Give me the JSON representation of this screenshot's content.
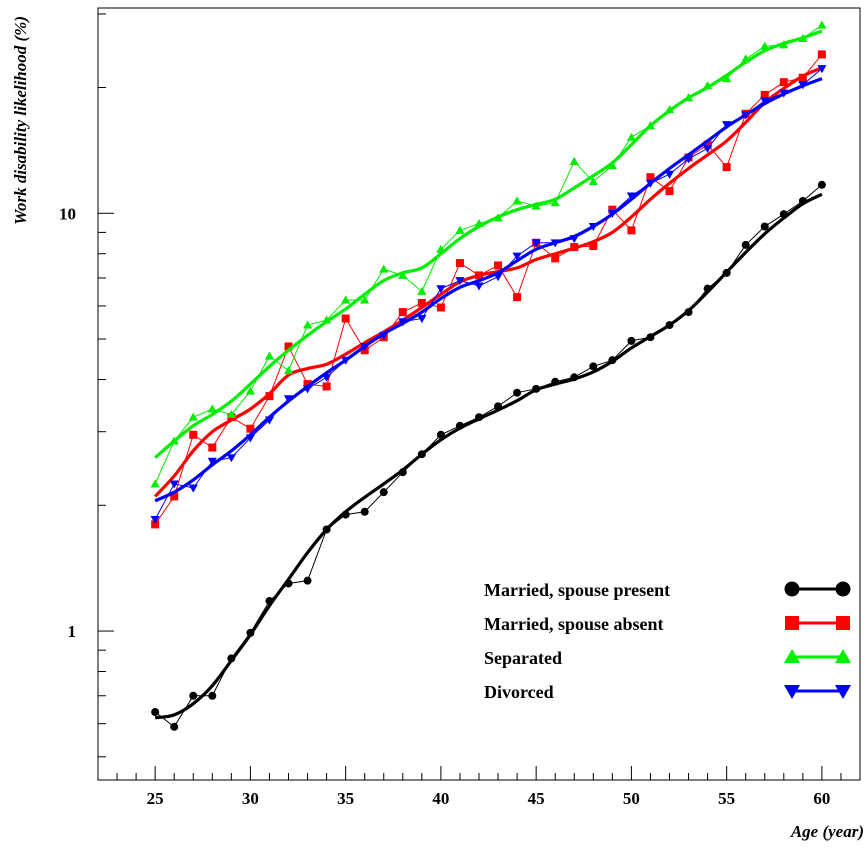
{
  "chart_data": {
    "type": "line",
    "xlabel": "Age (year)",
    "ylabel": "Work disability likelihood (%)",
    "y_scale": "log",
    "xlim": [
      22,
      62
    ],
    "ylim": [
      0.44,
      31
    ],
    "x_ticks": [
      25,
      30,
      35,
      40,
      45,
      50,
      55,
      60
    ],
    "y_ticks": [
      1,
      10
    ],
    "x": [
      25,
      26,
      27,
      28,
      29,
      30,
      31,
      32,
      33,
      34,
      35,
      36,
      37,
      38,
      39,
      40,
      41,
      42,
      43,
      44,
      45,
      46,
      47,
      48,
      49,
      50,
      51,
      52,
      53,
      54,
      55,
      56,
      57,
      58,
      59,
      60
    ],
    "legend_position": "bottom-right",
    "series": [
      {
        "name": "Married, spouse present",
        "color": "#000000",
        "marker": "circle",
        "values": [
          0.64,
          0.59,
          0.7,
          0.7,
          0.86,
          0.99,
          1.18,
          1.3,
          1.32,
          1.75,
          1.9,
          1.93,
          2.15,
          2.4,
          2.65,
          2.95,
          3.1,
          3.25,
          3.45,
          3.72,
          3.8,
          3.95,
          4.05,
          4.3,
          4.45,
          4.95,
          5.05,
          5.4,
          5.8,
          6.6,
          7.2,
          8.4,
          9.3,
          9.95,
          10.7,
          11.7
        ],
        "smooth": [
          0.62,
          0.63,
          0.67,
          0.74,
          0.85,
          0.98,
          1.15,
          1.33,
          1.54,
          1.75,
          1.93,
          2.09,
          2.25,
          2.43,
          2.65,
          2.87,
          3.06,
          3.22,
          3.38,
          3.56,
          3.78,
          3.9,
          4.01,
          4.17,
          4.42,
          4.76,
          5.07,
          5.4,
          5.85,
          6.48,
          7.23,
          8.06,
          8.93,
          9.74,
          10.54,
          11.1
        ]
      },
      {
        "name": "Married, spouse absent",
        "color": "#ff0000",
        "marker": "square",
        "values": [
          1.8,
          2.1,
          2.95,
          2.75,
          3.25,
          3.05,
          3.65,
          4.8,
          3.9,
          3.85,
          5.6,
          4.7,
          5.05,
          5.8,
          6.1,
          5.95,
          7.6,
          7.1,
          7.5,
          6.3,
          8.5,
          7.8,
          8.3,
          8.35,
          10.2,
          9.1,
          12.2,
          11.3,
          13.6,
          14.6,
          12.9,
          17.3,
          19.2,
          20.6,
          21.1,
          24.0
        ],
        "smooth": [
          2.1,
          2.35,
          2.7,
          3.0,
          3.2,
          3.4,
          3.7,
          4.1,
          4.25,
          4.35,
          4.6,
          4.9,
          5.2,
          5.55,
          5.95,
          6.4,
          6.85,
          7.1,
          7.25,
          7.4,
          7.75,
          8.0,
          8.25,
          8.55,
          9.0,
          9.8,
          10.8,
          11.8,
          12.8,
          13.8,
          14.9,
          16.5,
          18.4,
          19.9,
          21.3,
          22.3
        ]
      },
      {
        "name": "Separated",
        "color": "#00ee00",
        "marker": "triangle-up",
        "values": [
          2.25,
          2.85,
          3.25,
          3.4,
          3.3,
          3.75,
          4.55,
          4.2,
          5.4,
          5.55,
          6.2,
          6.2,
          7.35,
          7.1,
          6.5,
          8.2,
          9.1,
          9.45,
          9.75,
          10.7,
          10.4,
          10.6,
          13.3,
          11.9,
          13.0,
          15.2,
          16.2,
          17.7,
          18.9,
          20.2,
          21.0,
          23.4,
          25.1,
          25.3,
          26.2,
          28.2
        ],
        "smooth": [
          2.6,
          2.85,
          3.1,
          3.3,
          3.55,
          3.9,
          4.3,
          4.7,
          5.1,
          5.5,
          5.9,
          6.4,
          6.9,
          7.2,
          7.4,
          8.0,
          8.7,
          9.3,
          9.8,
          10.2,
          10.5,
          10.8,
          11.5,
          12.3,
          13.2,
          14.6,
          16.2,
          17.6,
          18.9,
          20.0,
          21.4,
          23.0,
          24.5,
          25.5,
          26.3,
          27.3
        ]
      },
      {
        "name": "Divorced",
        "color": "#0000ff",
        "marker": "triangle-down",
        "values": [
          1.85,
          2.25,
          2.2,
          2.55,
          2.6,
          2.9,
          3.2,
          3.6,
          3.8,
          4.05,
          4.45,
          4.8,
          5.1,
          5.5,
          5.6,
          6.6,
          6.9,
          6.7,
          7.05,
          7.9,
          8.5,
          8.5,
          8.7,
          9.3,
          10.0,
          11.0,
          11.8,
          12.4,
          13.5,
          14.3,
          16.3,
          17.2,
          18.6,
          19.4,
          20.3,
          22.2
        ],
        "smooth": [
          2.05,
          2.15,
          2.3,
          2.5,
          2.7,
          2.95,
          3.25,
          3.55,
          3.85,
          4.15,
          4.45,
          4.8,
          5.15,
          5.45,
          5.8,
          6.25,
          6.65,
          6.9,
          7.2,
          7.7,
          8.2,
          8.5,
          8.8,
          9.3,
          9.95,
          10.8,
          11.8,
          12.8,
          13.8,
          14.9,
          16.1,
          17.2,
          18.3,
          19.3,
          20.2,
          21.0
        ]
      }
    ]
  }
}
